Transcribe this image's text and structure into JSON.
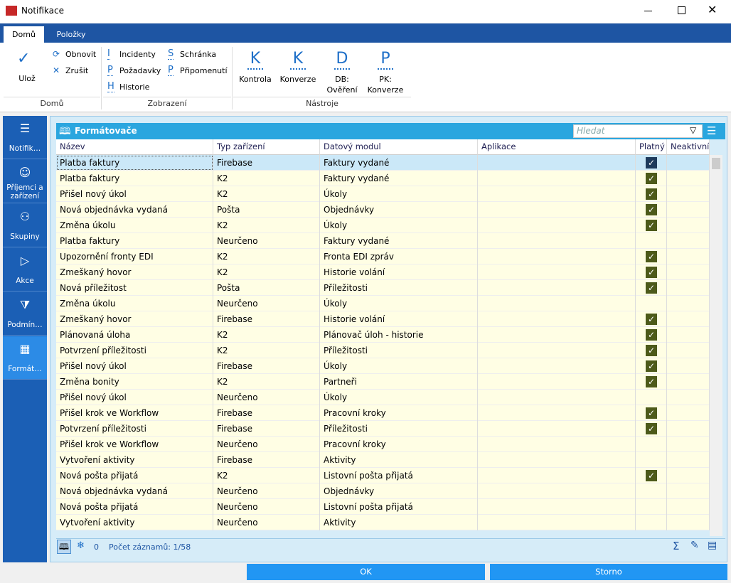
{
  "window": {
    "title": "Notifikace"
  },
  "ribbon": {
    "tabs": [
      "Domů",
      "Položky"
    ],
    "groups": [
      {
        "label": "Domů",
        "big": [
          {
            "label": "Ulož"
          }
        ],
        "small": [
          {
            "icon": "⟳",
            "label": "Obnovit"
          },
          {
            "icon": "✕",
            "label": "Zrušit"
          }
        ]
      },
      {
        "label": "Zobrazení",
        "small": [
          {
            "icon": "I",
            "label": "Incidenty"
          },
          {
            "icon": "P",
            "label": "Požadavky"
          },
          {
            "icon": "H",
            "label": "Historie"
          },
          {
            "icon": "S",
            "label": "Schránka"
          },
          {
            "icon": "P",
            "label": "Připomenutí"
          }
        ]
      },
      {
        "label": "Nástroje",
        "big": [
          {
            "icon": "K",
            "label": "Kontrola"
          },
          {
            "icon": "K",
            "label": "Konverze"
          },
          {
            "icon": "D",
            "label": "DB:\nOvěření"
          },
          {
            "icon": "P",
            "label": "PK:\nKonverze"
          }
        ]
      }
    ]
  },
  "nav": [
    "Notifik…",
    "Příjemci a\nzařízení",
    "Skupiny",
    "Akce",
    "Podmín…",
    "Formát…"
  ],
  "grid": {
    "title": "Formátovače",
    "search": "Hledat",
    "columns": [
      "Název",
      "Typ zařízení",
      "Datový modul",
      "Aplikace",
      "Platný",
      "Neaktivní"
    ],
    "rows": [
      [
        "Platba faktury",
        "Firebase",
        "Faktury vydané",
        true
      ],
      [
        "Platba faktury",
        "K2",
        "Faktury vydané",
        true
      ],
      [
        "Přišel nový úkol",
        "K2",
        "Úkoly",
        true
      ],
      [
        "Nová objednávka vydaná",
        "Pošta",
        "Objednávky",
        true
      ],
      [
        "Změna úkolu",
        "K2",
        "Úkoly",
        true
      ],
      [
        "Platba faktury",
        "Neurčeno",
        "Faktury vydané",
        false
      ],
      [
        "Upozornění fronty EDI",
        "K2",
        "Fronta EDI zpráv",
        true
      ],
      [
        "Zmeškaný hovor",
        "K2",
        "Historie volání",
        true
      ],
      [
        "Nová příležitost",
        "Pošta",
        "Příležitosti",
        true
      ],
      [
        "Změna úkolu",
        "Neurčeno",
        "Úkoly",
        false
      ],
      [
        "Zmeškaný hovor",
        "Firebase",
        "Historie volání",
        true
      ],
      [
        "Plánovaná úloha",
        "K2",
        "Plánovač úloh - historie",
        true
      ],
      [
        "Potvrzení příležitosti",
        "K2",
        "Příležitosti",
        true
      ],
      [
        "Přišel nový úkol",
        "Firebase",
        "Úkoly",
        true
      ],
      [
        "Změna bonity",
        "K2",
        "Partneři",
        true
      ],
      [
        "Přišel nový úkol",
        "Neurčeno",
        "Úkoly",
        false
      ],
      [
        "Přišel krok ve Workflow",
        "Firebase",
        "Pracovní kroky",
        true
      ],
      [
        "Potvrzení příležitosti",
        "Firebase",
        "Příležitosti",
        true
      ],
      [
        "Přišel krok ve Workflow",
        "Neurčeno",
        "Pracovní kroky",
        false
      ],
      [
        "Vytvoření aktivity",
        "Firebase",
        "Aktivity",
        false
      ],
      [
        "Nová pošta přijatá",
        "K2",
        "Listovní pošta přijatá",
        true
      ],
      [
        "Nová objednávka vydaná",
        "Neurčeno",
        "Objednávky",
        false
      ],
      [
        "Nová pošta přijatá",
        "Neurčeno",
        "Listovní pošta přijatá",
        false
      ],
      [
        "Vytvoření aktivity",
        "Neurčeno",
        "Aktivity",
        false
      ]
    ],
    "status": {
      "count0": "0",
      "records": "Počet záznamů: 1/58"
    }
  },
  "buttons": [
    "OK",
    "Storno"
  ]
}
